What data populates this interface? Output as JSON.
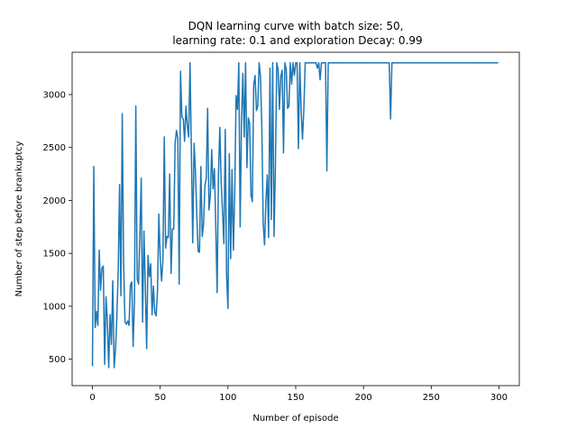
{
  "chart_data": {
    "type": "line",
    "title_lines": [
      "DQN learning curve with batch size: 50,",
      "learning rate: 0.1 and exploration Decay: 0.99"
    ],
    "xlabel": "Number of episode",
    "ylabel": "Number of step before brankuptcy",
    "xlim": [
      -15,
      315
    ],
    "ylim": [
      250,
      3400
    ],
    "xticks": [
      0,
      50,
      100,
      150,
      200,
      250,
      300
    ],
    "xtick_labels": [
      "0",
      "50",
      "100",
      "150",
      "200",
      "250",
      "300"
    ],
    "yticks": [
      500,
      1000,
      1500,
      2000,
      2500,
      3000
    ],
    "ytick_labels": [
      "500",
      "1000",
      "1500",
      "2000",
      "2500",
      "3000"
    ],
    "grid": false,
    "line_color": "#1f77b4",
    "series": [
      {
        "name": "",
        "x_start": 0,
        "x_step": 1,
        "values": [
          440,
          2320,
          800,
          950,
          820,
          1530,
          1150,
          1360,
          1380,
          450,
          1090,
          860,
          420,
          920,
          640,
          1240,
          420,
          590,
          900,
          1320,
          2150,
          1100,
          2820,
          1400,
          850,
          830,
          860,
          820,
          1200,
          1230,
          620,
          1050,
          2890,
          1260,
          1210,
          1670,
          2210,
          850,
          1710,
          1200,
          600,
          1480,
          1280,
          1400,
          920,
          1190,
          940,
          910,
          1150,
          1870,
          1460,
          1240,
          1430,
          2600,
          1550,
          1660,
          1650,
          2250,
          1310,
          1730,
          1730,
          2540,
          2660,
          2590,
          1210,
          3220,
          2790,
          2770,
          2560,
          2890,
          2710,
          2600,
          3300,
          2470,
          1600,
          2540,
          2270,
          1860,
          1520,
          1510,
          2320,
          1660,
          1780,
          2140,
          2210,
          2870,
          1910,
          2050,
          2480,
          2110,
          2300,
          1770,
          1130,
          2240,
          2690,
          2170,
          1890,
          1590,
          2670,
          1280,
          980,
          2440,
          1450,
          2290,
          1530,
          2060,
          2990,
          2860,
          3300,
          1750,
          2760,
          3200,
          2600,
          3300,
          2310,
          2780,
          2730,
          2050,
          1990,
          3090,
          3180,
          2850,
          2890,
          3300,
          3170,
          2700,
          1780,
          1580,
          1990,
          2240,
          1650,
          3250,
          1820,
          3300,
          1660,
          2310,
          3300,
          3240,
          2860,
          3170,
          3230,
          2450,
          3300,
          3240,
          2870,
          2890,
          3300,
          3100,
          3300,
          3180,
          3300,
          3300,
          2490,
          3300,
          2850,
          2580,
          2860,
          3300,
          3300,
          3300,
          3300,
          3300,
          3300,
          3300,
          3300,
          3300,
          3250,
          3300,
          3140,
          3300,
          3300,
          3300,
          3300,
          2280,
          3300,
          3300,
          3300,
          3300,
          3300,
          3300,
          3300,
          3300,
          3300,
          3300,
          3300,
          3300,
          3300,
          3300,
          3300,
          3300,
          3300,
          3300,
          3300,
          3300,
          3300,
          3300,
          3300,
          3300,
          3300,
          3300,
          3300,
          3300,
          3300,
          3300,
          3300,
          3300,
          3300,
          3300,
          3300,
          3300,
          3300,
          3300,
          3300,
          3300,
          3300,
          3300,
          3300,
          3300,
          3300,
          3300,
          2770,
          3300,
          3300,
          3300,
          3300,
          3300,
          3300,
          3300,
          3300,
          3300,
          3300,
          3300,
          3300,
          3300,
          3300,
          3300,
          3300,
          3300,
          3300,
          3300,
          3300,
          3300,
          3300,
          3300,
          3300,
          3300,
          3300,
          3300,
          3300,
          3300,
          3300,
          3300,
          3300,
          3300,
          3300,
          3300,
          3300,
          3300,
          3300,
          3300,
          3300,
          3300,
          3300,
          3300,
          3300,
          3300,
          3300,
          3300,
          3300,
          3300,
          3300,
          3300,
          3300,
          3300,
          3300,
          3300,
          3300,
          3300,
          3300,
          3300,
          3300,
          3300,
          3300,
          3300,
          3300,
          3300,
          3300,
          3300,
          3300,
          3300,
          3300,
          3300,
          3300,
          3300,
          3300,
          3300,
          3300,
          3300,
          3300,
          3300
        ]
      }
    ]
  }
}
